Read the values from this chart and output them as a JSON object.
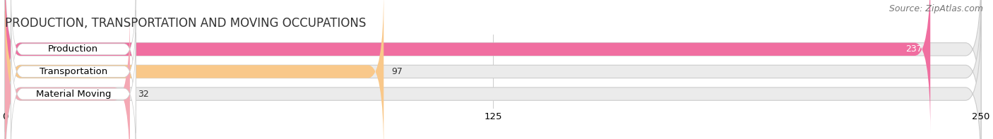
{
  "title": "PRODUCTION, TRANSPORTATION AND MOVING OCCUPATIONS",
  "source": "Source: ZipAtlas.com",
  "categories": [
    "Production",
    "Transportation",
    "Material Moving"
  ],
  "values": [
    237,
    97,
    32
  ],
  "bar_colors": [
    "#F06EA0",
    "#F9C88A",
    "#F4A8B4"
  ],
  "bar_bg_color": "#EBEBEB",
  "xlim": [
    0,
    250
  ],
  "xticks": [
    0,
    125,
    250
  ],
  "title_fontsize": 12,
  "label_fontsize": 9.5,
  "value_fontsize": 9,
  "source_fontsize": 9,
  "bar_height": 0.58,
  "background_color": "#FFFFFF"
}
